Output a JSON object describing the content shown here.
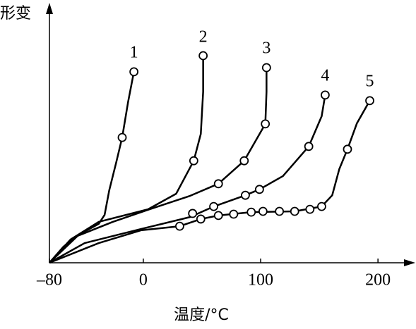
{
  "chart_data": {
    "type": "line",
    "ylabel": "形变",
    "xlabel": "温度/°C",
    "xlim": [
      -80,
      230
    ],
    "ylim": [
      0,
      100
    ],
    "xticks": [
      {
        "value": -80,
        "label": "–80"
      },
      0,
      100,
      200
    ],
    "color": "#000000",
    "series": [
      {
        "name": "1",
        "x": [
          -80,
          -68,
          -56,
          -38,
          -33,
          -29,
          -23,
          -18,
          -13,
          -8
        ],
        "values": [
          0,
          6.3,
          10.7,
          15.2,
          18.7,
          28.4,
          39.4,
          49,
          62.8,
          74.7
        ],
        "points": {
          "x": [
            -18,
            -8
          ],
          "values": [
            49,
            74.7
          ]
        }
      },
      {
        "name": "2",
        "x": [
          -80,
          -62,
          -38,
          4,
          28,
          43,
          49,
          51,
          51
        ],
        "values": [
          0,
          9.1,
          16,
          20.9,
          27,
          39.9,
          50.4,
          66.9,
          80.7
        ],
        "points": {
          "x": [
            43,
            51
          ],
          "values": [
            39.9,
            81
          ]
        }
      },
      {
        "name": "3",
        "x": [
          -80,
          -56,
          -26,
          4,
          40,
          64,
          86,
          104,
          105,
          105
        ],
        "values": [
          0,
          10.5,
          16,
          20.7,
          26.2,
          30.9,
          39.9,
          54.3,
          66.9,
          76.3
        ],
        "points": {
          "x": [
            64,
            86,
            104,
            105
          ],
          "values": [
            30.9,
            39.9,
            54.3,
            76.3
          ]
        }
      },
      {
        "name": "4",
        "x": [
          -80,
          -50,
          -2,
          40,
          60,
          87,
          99,
          119,
          141,
          152,
          155
        ],
        "values": [
          0,
          7.7,
          13.2,
          17.9,
          22,
          26.4,
          28.7,
          33.9,
          45.5,
          57.3,
          65.6
        ],
        "points": {
          "x": [
            42,
            60,
            87,
            99,
            141,
            155
          ],
          "values": [
            19.3,
            22,
            26.4,
            28.7,
            45.5,
            65.6
          ]
        }
      },
      {
        "name": "5",
        "x": [
          -80,
          -38,
          -2,
          31,
          49,
          64,
          92,
          129,
          152,
          161,
          167,
          174,
          182,
          193
        ],
        "values": [
          0,
          7.7,
          12.7,
          14.3,
          17.1,
          18.5,
          19.8,
          20.1,
          22,
          26.4,
          36.6,
          44.4,
          54.5,
          63.4
        ],
        "points": {
          "x": [
            31,
            49,
            64,
            77,
            92,
            102,
            116,
            129,
            142,
            152,
            174,
            193
          ],
          "values": [
            14.3,
            17.1,
            18.5,
            19,
            19.8,
            20.1,
            20.1,
            20.1,
            20.9,
            22,
            44.4,
            63.4
          ]
        }
      }
    ]
  }
}
